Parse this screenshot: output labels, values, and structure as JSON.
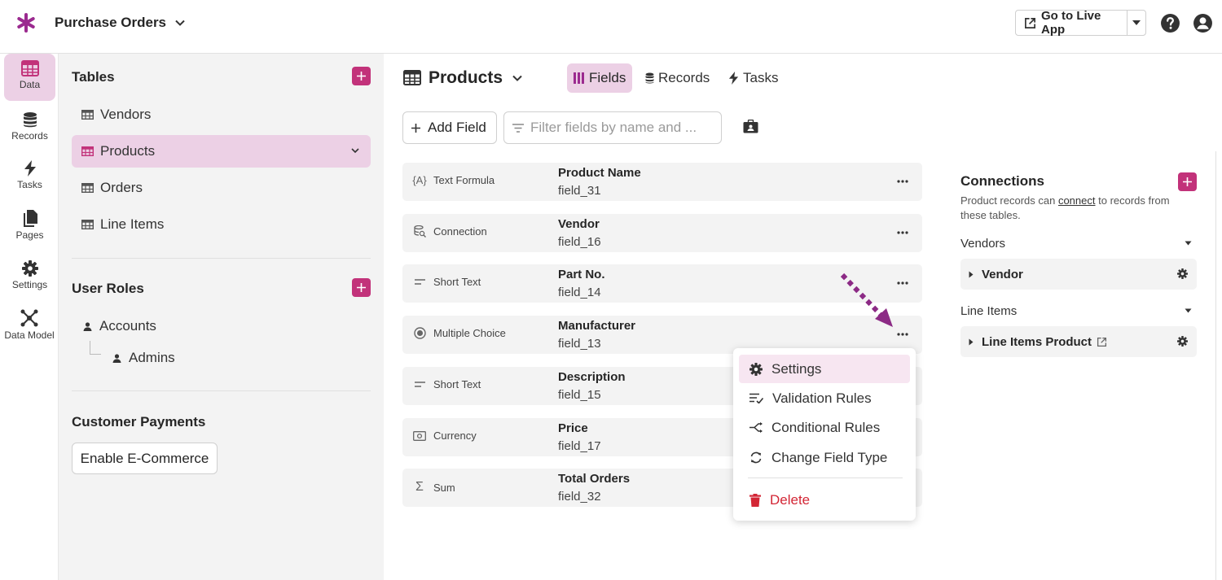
{
  "app": {
    "title": "Purchase Orders",
    "live_button": "Go to Live App",
    "accent": "#c2327a",
    "active_bg": "#ecd0e5"
  },
  "rail": [
    {
      "label": "Data",
      "icon": "table-icon",
      "active": true
    },
    {
      "label": "Records",
      "icon": "database-icon"
    },
    {
      "label": "Tasks",
      "icon": "bolt-icon"
    },
    {
      "label": "Pages",
      "icon": "pages-icon"
    },
    {
      "label": "Settings",
      "icon": "gear-icon"
    },
    {
      "label": "Data Model",
      "icon": "data-model-icon"
    }
  ],
  "panel": {
    "tables_title": "Tables",
    "tables": [
      "Vendors",
      "Products",
      "Orders",
      "Line Items"
    ],
    "active_table": "Products",
    "roles_title": "User Roles",
    "roles": [
      "Accounts",
      "Admins"
    ],
    "payments_title": "Customer Payments",
    "ecommerce_button": "Enable E-Commerce"
  },
  "main": {
    "title": "Products",
    "tabs": [
      {
        "label": "Fields",
        "icon": "fields-icon",
        "active": true
      },
      {
        "label": "Records",
        "icon": "records-icon"
      },
      {
        "label": "Tasks",
        "icon": "bolt-icon"
      }
    ],
    "add_field": "Add Field",
    "filter_placeholder": "Filter fields by name and ...",
    "fields": [
      {
        "type": "Text Formula",
        "icon": "{A}",
        "name": "Product Name",
        "key": "field_31"
      },
      {
        "type": "Connection",
        "icon": "connection-icon",
        "name": "Vendor",
        "key": "field_16"
      },
      {
        "type": "Short Text",
        "icon": "short-text-icon",
        "name": "Part No.",
        "key": "field_14"
      },
      {
        "type": "Multiple Choice",
        "icon": "radio-icon",
        "name": "Manufacturer",
        "key": "field_13"
      },
      {
        "type": "Short Text",
        "icon": "short-text-icon",
        "name": "Description",
        "key": "field_15"
      },
      {
        "type": "Currency",
        "icon": "currency-icon",
        "name": "Price",
        "key": "field_17"
      },
      {
        "type": "Sum",
        "icon": "Σ",
        "name": "Total Orders",
        "key": "field_32"
      }
    ]
  },
  "menu": {
    "items": [
      "Settings",
      "Validation Rules",
      "Conditional Rules",
      "Change Field Type"
    ],
    "delete": "Delete",
    "danger_color": "#d32635"
  },
  "connections": {
    "title": "Connections",
    "desc_pre": "Product records can ",
    "desc_link": "connect",
    "desc_post": " to records from these tables.",
    "groups": [
      {
        "label": "Vendors",
        "card": "Vendor"
      },
      {
        "label": "Line Items",
        "card": "Line Items Product"
      }
    ]
  }
}
